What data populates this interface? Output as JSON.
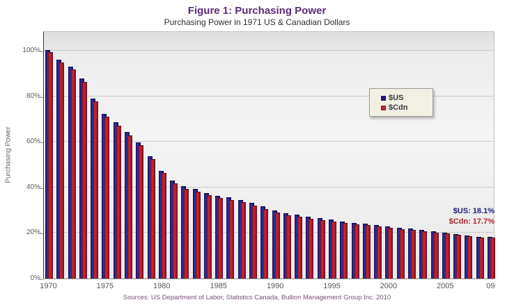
{
  "header": {
    "title": "Figure 1: Purchasing Power",
    "subtitle": "Purchasing Power in 1971 US & Canadian Dollars"
  },
  "chart_data": {
    "type": "bar",
    "title": "Figure 1: Purchasing Power",
    "subtitle": "Purchasing Power in 1971 US & Canadian Dollars",
    "xlabel": "",
    "ylabel": "Purchasing Power",
    "ylim": [
      0,
      100
    ],
    "grid": true,
    "legend_position": "upper-right-inside",
    "yticks": [
      0,
      20,
      40,
      60,
      80,
      100
    ],
    "ytick_labels": [
      "0%",
      "20%",
      "40%",
      "60%",
      "80%",
      "100%"
    ],
    "years": [
      1970,
      1971,
      1972,
      1973,
      1974,
      1975,
      1976,
      1977,
      1978,
      1979,
      1980,
      1981,
      1982,
      1983,
      1984,
      1985,
      1986,
      1987,
      1988,
      1989,
      1990,
      1991,
      1992,
      1993,
      1994,
      1995,
      1996,
      1997,
      1998,
      1999,
      2000,
      2001,
      2002,
      2003,
      2004,
      2005,
      2006,
      2007,
      2008,
      2009
    ],
    "xticks": [
      {
        "label": "1970",
        "year": 1970
      },
      {
        "label": "1975",
        "year": 1975
      },
      {
        "label": "1980",
        "year": 1980
      },
      {
        "label": "1985",
        "year": 1985
      },
      {
        "label": "1990",
        "year": 1990
      },
      {
        "label": "1995",
        "year": 1995
      },
      {
        "label": "2000",
        "year": 2000
      },
      {
        "label": "2005",
        "year": 2005
      },
      {
        "label": "09",
        "year": 2009
      }
    ],
    "series": [
      {
        "name": "$US",
        "color": "#1c1c7e",
        "values": [
          100,
          95.8,
          92.8,
          87.4,
          78.7,
          72.1,
          68.2,
          64.0,
          59.5,
          53.4,
          47.1,
          42.7,
          40.2,
          39.0,
          37.3,
          36.1,
          35.4,
          34.2,
          32.8,
          31.3,
          29.7,
          28.5,
          27.7,
          26.9,
          26.2,
          25.5,
          24.7,
          24.2,
          23.8,
          23.3,
          22.5,
          21.9,
          21.6,
          21.1,
          20.5,
          19.9,
          19.2,
          18.7,
          18.0,
          18.1
        ]
      },
      {
        "name": "$Cdn",
        "color": "#b02030",
        "values": [
          99.0,
          94.6,
          91.5,
          86.1,
          77.4,
          70.8,
          66.8,
          62.6,
          58.1,
          52.1,
          45.9,
          41.5,
          39.0,
          37.8,
          36.2,
          35.0,
          34.2,
          33.1,
          31.8,
          30.3,
          28.7,
          27.5,
          26.8,
          26.0,
          25.4,
          24.7,
          24.0,
          23.5,
          23.1,
          22.6,
          21.9,
          21.3,
          21.0,
          20.5,
          19.9,
          19.4,
          18.8,
          18.3,
          17.6,
          17.7
        ]
      }
    ],
    "annotations": [
      {
        "text": "$US: 18.1%",
        "color": "#1c1c7e"
      },
      {
        "text": "$Cdn: 17.7%",
        "color": "#b02030"
      }
    ]
  },
  "footer": {
    "source": "Sources: US Department of Labor, Statistics Canada, Bullion Management Group Inc. 2010"
  }
}
